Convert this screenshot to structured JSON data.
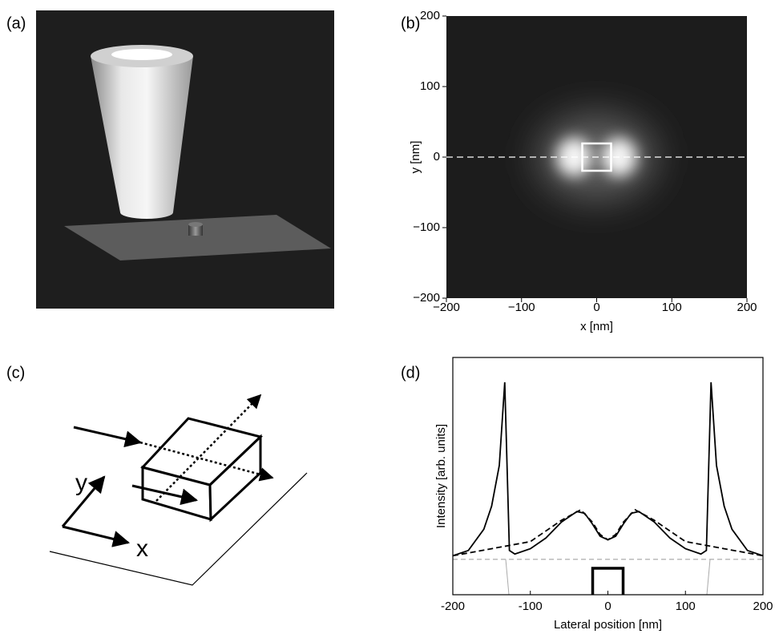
{
  "figure": {
    "labels": [
      "(a)",
      "(b)",
      "(c)",
      "(d)"
    ]
  },
  "diagram": {
    "x_label": "x",
    "y_label": "y"
  },
  "chart_data": [
    {
      "type": "heatmap",
      "xlabel": "x [nm]",
      "ylabel": "y [nm]",
      "xlim": [
        -200,
        200
      ],
      "ylim": [
        -200,
        200
      ],
      "xticks": [
        {
          "value": -200,
          "label": "−200"
        },
        {
          "value": -100,
          "label": "−100"
        },
        0,
        100,
        200
      ],
      "yticks": [
        {
          "value": -200,
          "label": "−200"
        },
        {
          "value": -100,
          "label": "−100"
        },
        0,
        100,
        200
      ]
    },
    {
      "type": "line",
      "xlabel": "Lateral position [nm]",
      "ylabel": "Intensity [arb. units]",
      "xlim": [
        -200,
        200
      ],
      "ylim": [
        -0.2,
        1.14
      ],
      "xticks": [
        -200,
        -100,
        0,
        100,
        200
      ],
      "series": [
        {
          "color": "#000000",
          "dash": "solid",
          "x": [
            -200,
            -180,
            -160,
            -150,
            -140,
            -133,
            -127,
            -120,
            -100,
            -80,
            -60,
            -40,
            -30,
            -20,
            -10,
            0,
            10,
            20,
            30,
            40,
            60,
            80,
            100,
            120,
            127,
            133,
            140,
            150,
            160,
            180,
            200
          ],
          "values": [
            0.02,
            0.05,
            0.17,
            0.3,
            0.53,
            1.0,
            0.05,
            0.03,
            0.06,
            0.12,
            0.21,
            0.27,
            0.26,
            0.2,
            0.13,
            0.11,
            0.13,
            0.2,
            0.26,
            0.27,
            0.21,
            0.12,
            0.06,
            0.03,
            0.05,
            1.0,
            0.53,
            0.3,
            0.17,
            0.05,
            0.02
          ]
        },
        {
          "color": "#000000",
          "dash": "dashed",
          "x": [
            -200,
            -150,
            -100,
            -60,
            -35,
            -20,
            -10,
            0,
            10,
            20,
            35,
            60,
            100,
            150,
            200
          ],
          "values": [
            0.02,
            0.06,
            0.1,
            0.22,
            0.28,
            0.21,
            0.14,
            0.11,
            0.14,
            0.21,
            0.28,
            0.22,
            0.1,
            0.06,
            0.02
          ]
        }
      ]
    }
  ]
}
